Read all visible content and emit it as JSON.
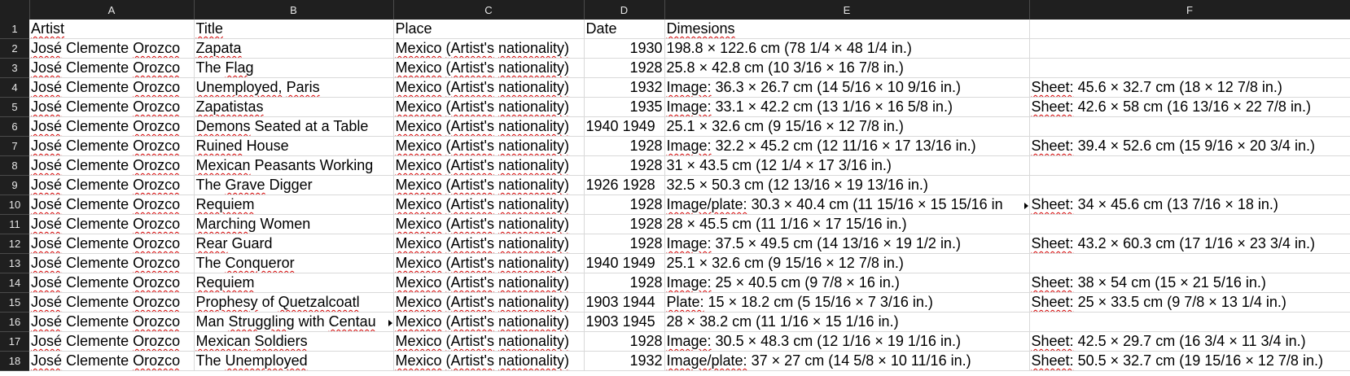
{
  "columns": [
    "A",
    "B",
    "C",
    "D",
    "E",
    "F"
  ],
  "rows": [
    {
      "num": "1",
      "cells": [
        "Artist",
        "Title",
        "Place",
        "Date",
        "Dimesions",
        ""
      ]
    },
    {
      "num": "2",
      "cells": [
        "José Clemente Orozco",
        "Zapata",
        "Mexico (Artist's nationality)",
        "1930",
        "198.8 × 122.6 cm (78 1/4 × 48 1/4 in.)",
        ""
      ]
    },
    {
      "num": "3",
      "cells": [
        "José Clemente Orozco",
        "The Flag",
        "Mexico (Artist's nationality)",
        "1928",
        "25.8 × 42.8 cm (10 3/16 × 16 7/8 in.)",
        ""
      ]
    },
    {
      "num": "4",
      "cells": [
        "José Clemente Orozco",
        "Unemployed, Paris",
        "Mexico (Artist's nationality)",
        "1932",
        "Image: 36.3 × 26.7 cm (14 5/16 × 10 9/16 in.)",
        "Sheet: 45.6 × 32.7 cm (18 × 12 7/8 in.)"
      ]
    },
    {
      "num": "5",
      "cells": [
        "José Clemente Orozco",
        "Zapatistas",
        "Mexico (Artist's nationality)",
        "1935",
        "Image: 33.1 × 42.2 cm (13 1/16 × 16 5/8 in.)",
        "Sheet: 42.6 × 58 cm (16 13/16 × 22 7/8 in.)"
      ]
    },
    {
      "num": "6",
      "cells": [
        "José Clemente Orozco",
        "Demons Seated at a Table",
        "Mexico (Artist's nationality)",
        "1940 1949",
        "25.1 × 32.6 cm (9 15/16 × 12 7/8 in.)",
        ""
      ]
    },
    {
      "num": "7",
      "cells": [
        "José Clemente Orozco",
        "Ruined House",
        "Mexico (Artist's nationality)",
        "1928",
        "Image: 32.2 × 45.2 cm (12 11/16 × 17 13/16 in.)",
        "Sheet: 39.4 × 52.6 cm (15 9/16 × 20 3/4 in.)"
      ]
    },
    {
      "num": "8",
      "cells": [
        "José Clemente Orozco",
        "Mexican Peasants Working",
        "Mexico (Artist's nationality)",
        "1928",
        "31 × 43.5 cm (12 1/4 × 17 3/16 in.)",
        ""
      ]
    },
    {
      "num": "9",
      "cells": [
        "José Clemente Orozco",
        "The Grave Digger",
        "Mexico (Artist's nationality)",
        "1926 1928",
        "32.5 × 50.3 cm (12 13/16 × 19 13/16 in.)",
        ""
      ]
    },
    {
      "num": "10",
      "cells": [
        "José Clemente Orozco",
        "Requiem",
        "Mexico (Artist's nationality)",
        "1928",
        "Image/plate: 30.3 × 40.4 cm (11 15/16 × 15 15/16 in",
        "Sheet: 34 × 45.6 cm (13 7/16 × 18 in.)"
      ]
    },
    {
      "num": "11",
      "cells": [
        "José Clemente Orozco",
        "Marching Women",
        "Mexico (Artist's nationality)",
        "1928",
        "28 × 45.5 cm (11 1/16 × 17 15/16 in.)",
        ""
      ]
    },
    {
      "num": "12",
      "cells": [
        "José Clemente Orozco",
        "Rear Guard",
        "Mexico (Artist's nationality)",
        "1928",
        "Image: 37.5 × 49.5 cm (14 13/16 × 19 1/2 in.)",
        "Sheet: 43.2 × 60.3 cm (17 1/16 × 23 3/4 in.)"
      ]
    },
    {
      "num": "13",
      "cells": [
        "José Clemente Orozco",
        "The Conqueror",
        "Mexico (Artist's nationality)",
        "1940 1949",
        "25.1 × 32.6 cm (9 15/16 × 12 7/8 in.)",
        ""
      ]
    },
    {
      "num": "14",
      "cells": [
        "José Clemente Orozco",
        "Requiem",
        "Mexico (Artist's nationality)",
        "1928",
        "Image: 25 × 40.5 cm (9 7/8 × 16 in.)",
        "Sheet: 38 × 54 cm (15 × 21 5/16 in.)"
      ]
    },
    {
      "num": "15",
      "cells": [
        "José Clemente Orozco",
        "Prophesy of Quetzalcoatl",
        "Mexico (Artist's nationality)",
        "1903 1944",
        "Plate: 15 × 18.2 cm (5 15/16 × 7 3/16 in.)",
        "Sheet: 25 × 33.5 cm (9 7/8 × 13 1/4 in.)"
      ]
    },
    {
      "num": "16",
      "cells": [
        "José Clemente Orozco",
        "Man Struggling with Centau",
        "Mexico (Artist's nationality)",
        "1903 1945",
        "28 × 38.2 cm (11 1/16 × 15 1/16 in.)",
        ""
      ]
    },
    {
      "num": "17",
      "cells": [
        "José Clemente Orozco",
        "Mexican Soldiers",
        "Mexico (Artist's nationality)",
        "1928",
        "Image: 30.5 × 48.3 cm (12 1/16 × 19 1/16 in.)",
        "Sheet: 42.5 × 29.7 cm (16 3/4 × 11 3/4 in.)"
      ]
    },
    {
      "num": "18",
      "cells": [
        "José Clemente Orozco",
        "The Unemployed",
        "Mexico (Artist's nationality)",
        "1932",
        "Image/plate: 37 × 27 cm (14 5/8 × 10 11/16 in.)",
        "Sheet: 50.5 × 32.7 cm (19 15/16 × 12 7/8 in.)"
      ]
    }
  ],
  "theme": {
    "header_bg": "#1f1f1f",
    "header_text": "#e6e6e6",
    "gridline": "#d9d9d9",
    "spellcheck": "#d40000"
  }
}
